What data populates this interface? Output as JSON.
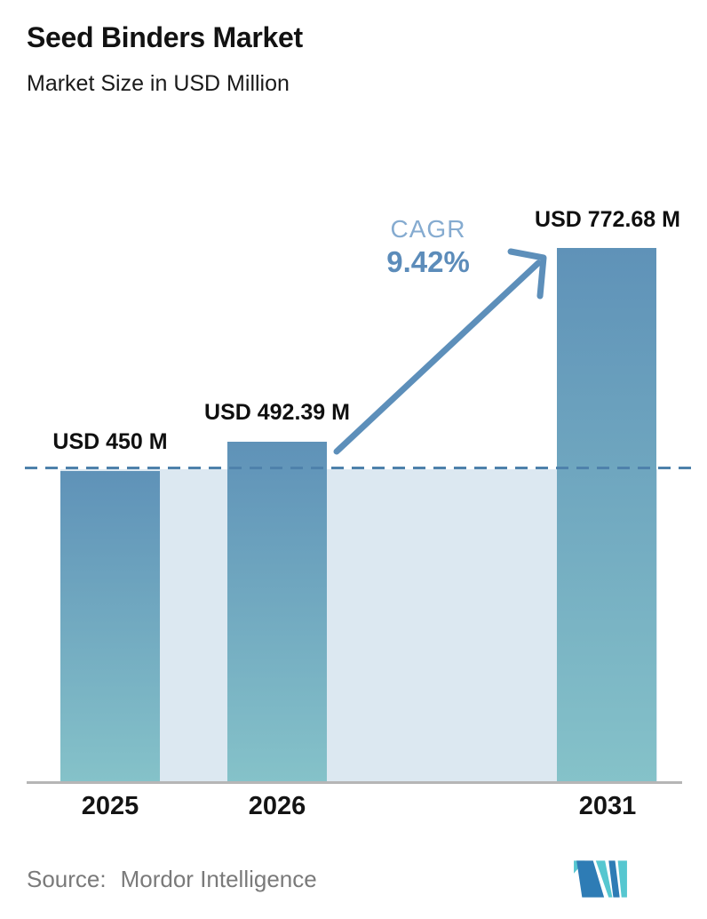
{
  "header": {
    "title": "Seed Binders Market",
    "subtitle": "Market Size in USD Million"
  },
  "chart_data": {
    "type": "bar",
    "title": "Seed Binders Market",
    "subtitle": "Market Size in USD Million",
    "categories": [
      "2025",
      "2026",
      "2031"
    ],
    "values": [
      450,
      492.39,
      772.68
    ],
    "value_labels": [
      "USD 450 M",
      "USD 492.39 M",
      "USD 772.68 M"
    ],
    "unit": "USD Million",
    "ylim": [
      0,
      800
    ],
    "baseline_value": 450,
    "baseline_style": "dashed horizontal reference line at first-year value",
    "shaded_region": "light band from baseline down to x-axis across plot width",
    "annotation": {
      "label": "CAGR",
      "value": "9.42%",
      "arrow": "from 2026 bar top to 2031 bar top"
    },
    "legend": "none",
    "grid": "off",
    "colors": {
      "bar_top": "#5f92b8",
      "bar_bottom": "#85c2c9",
      "band": "#dce8f1",
      "dash_line": "#4e81ab",
      "arrow": "#5d8fba",
      "cagr_light": "#85abd0",
      "cagr_dark": "#5c8cba",
      "logo_blue": "#2e7cb5",
      "logo_teal": "#56c7d0"
    }
  },
  "footer": {
    "source_label": "Source:",
    "source_value": "Mordor Intelligence"
  }
}
